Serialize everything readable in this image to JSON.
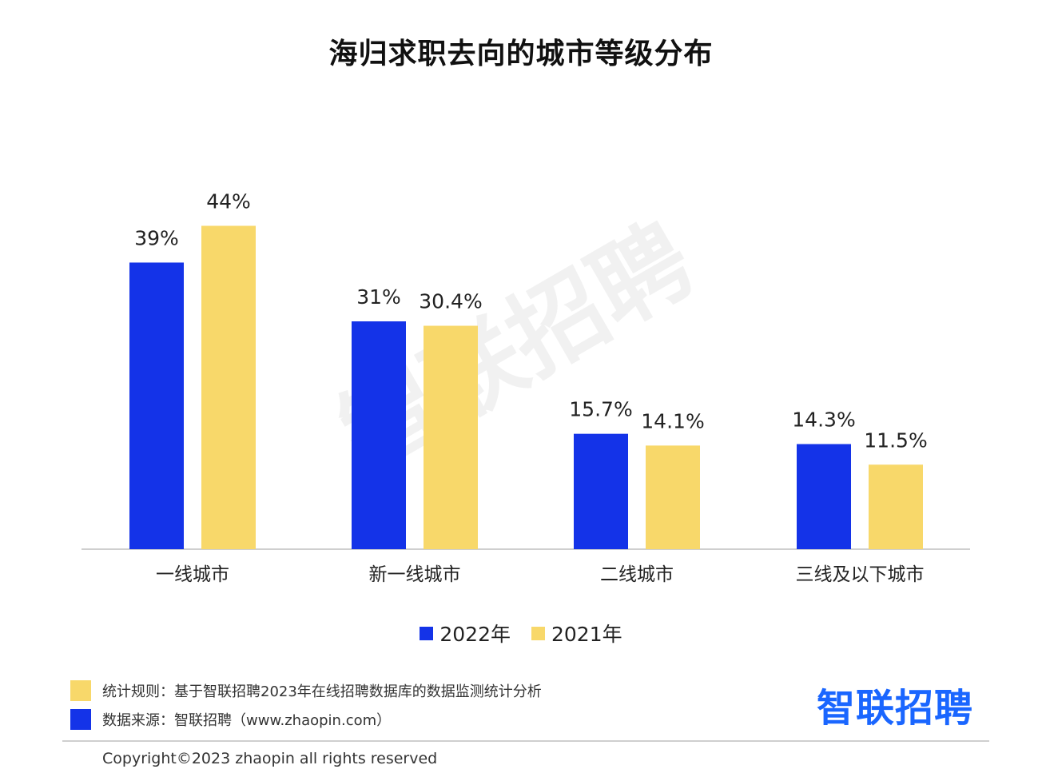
{
  "colors": {
    "series_2022": "#1433e8",
    "series_2021": "#f8d86a",
    "axis": "#cfcfcf",
    "brand": "#1a66ff"
  },
  "chart_data": {
    "type": "bar",
    "title": "海归求职去向的城市等级分布",
    "categories": [
      "一线城市",
      "新一线城市",
      "二线城市",
      "三线及以下城市"
    ],
    "series": [
      {
        "name": "2022年",
        "values": [
          39,
          31,
          15.7,
          14.3
        ],
        "labels": [
          "39%",
          "31%",
          "15.7%",
          "14.3%"
        ]
      },
      {
        "name": "2021年",
        "values": [
          44,
          30.4,
          14.1,
          11.5
        ],
        "labels": [
          "44%",
          "30.4%",
          "14.1%",
          "11.5%"
        ]
      }
    ],
    "ylim": [
      0,
      62
    ],
    "grid": false,
    "legend_position": "bottom-center"
  },
  "watermark": "智联招聘",
  "footer": {
    "rule_note": "统计规则：基于智联招聘2023年在线招聘数据库的数据监测统计分析",
    "source_note": "数据来源：智联招聘（www.zhaopin.com）",
    "brand": "智联招聘",
    "copyright": "Copyright©2023 zhaopin all rights reserved"
  }
}
